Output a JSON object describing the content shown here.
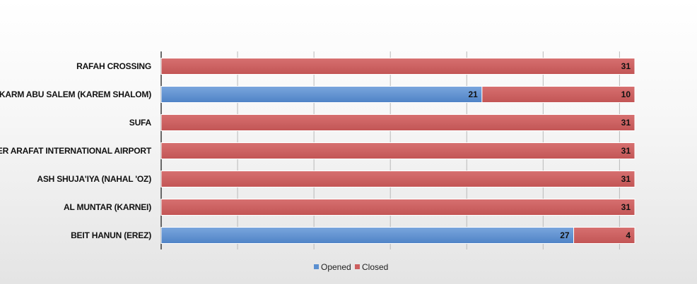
{
  "chart_data": {
    "type": "bar",
    "orientation": "horizontal",
    "stacked": true,
    "categories": [
      "RAFAH CROSSING",
      "KARM ABU SALEM (KAREM SHALOM)",
      "SUFA",
      "YASSER ARAFAT INTERNATIONAL AIRPORT",
      "ASH SHUJA'IYA (NAHAL 'OZ)",
      "AL MUNTAR (KARNEI)",
      "BEIT HANUN (EREZ)"
    ],
    "series": [
      {
        "name": "Opened",
        "color": "#5b8fd0",
        "values": [
          0,
          21,
          0,
          0,
          0,
          0,
          27
        ]
      },
      {
        "name": "Closed",
        "color": "#cd5f5f",
        "values": [
          31,
          10,
          31,
          31,
          31,
          31,
          4
        ]
      }
    ],
    "xlim": [
      0,
      31
    ],
    "grid": true,
    "legend_position": "bottom"
  }
}
